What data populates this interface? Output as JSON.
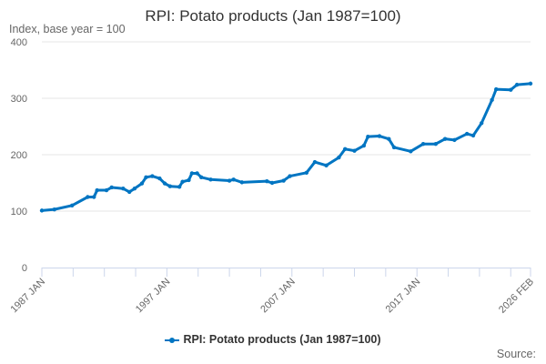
{
  "chart_data": {
    "type": "line",
    "title": "RPI: Potato products (Jan 1987=100)",
    "ylabel": "Index, base year = 100",
    "xlabel": "",
    "ylim": [
      0,
      400
    ],
    "yticks": [
      0,
      100,
      200,
      300,
      400
    ],
    "xlim": [
      "1987-01",
      "2026-02"
    ],
    "xtick_labels": [
      {
        "date": "1987-01",
        "label": "1987 JAN"
      },
      {
        "date": "1997-01",
        "label": "1997 JAN"
      },
      {
        "date": "2007-01",
        "label": "2007 JAN"
      },
      {
        "date": "2017-01",
        "label": "2017 JAN"
      },
      {
        "date": "2026-02",
        "label": "2026 FEB"
      }
    ],
    "grid": "horizontal",
    "legend_position": "bottom",
    "color": "#0075c2",
    "series": [
      {
        "name": "RPI: Potato products (Jan 1987=100)",
        "x": [
          "1987-01",
          "1988-01",
          "1989-06",
          "1990-09",
          "1991-03",
          "1991-06",
          "1992-03",
          "1992-08",
          "1993-07",
          "1994-01",
          "1994-06",
          "1995-01",
          "1995-05",
          "1995-11",
          "1996-06",
          "1996-11",
          "1997-04",
          "1998-01",
          "1998-04",
          "1998-10",
          "1999-01",
          "1999-06",
          "1999-10",
          "2000-07",
          "2002-01",
          "2002-05",
          "2003-01",
          "2005-01",
          "2005-06",
          "2006-05",
          "2006-11",
          "2008-03",
          "2008-11",
          "2009-10",
          "2010-10",
          "2011-04",
          "2012-01",
          "2012-10",
          "2013-02",
          "2014-01",
          "2014-10",
          "2015-03",
          "2016-07",
          "2017-07",
          "2018-07",
          "2019-04",
          "2020-01",
          "2021-01",
          "2021-07",
          "2022-03",
          "2023-01",
          "2023-05",
          "2024-07",
          "2025-01",
          "2026-02"
        ],
        "values": [
          101,
          103,
          110,
          125,
          125,
          137,
          137,
          142,
          140,
          134,
          140,
          149,
          160,
          162,
          158,
          149,
          144,
          143,
          152,
          155,
          167,
          167,
          160,
          156,
          154,
          156,
          151,
          153,
          150,
          154,
          162,
          168,
          187,
          181,
          195,
          210,
          207,
          216,
          232,
          233,
          228,
          213,
          206,
          219,
          219,
          228,
          226,
          237,
          234,
          256,
          297,
          316,
          315,
          324,
          326
        ]
      }
    ]
  },
  "source_label": "Source:"
}
